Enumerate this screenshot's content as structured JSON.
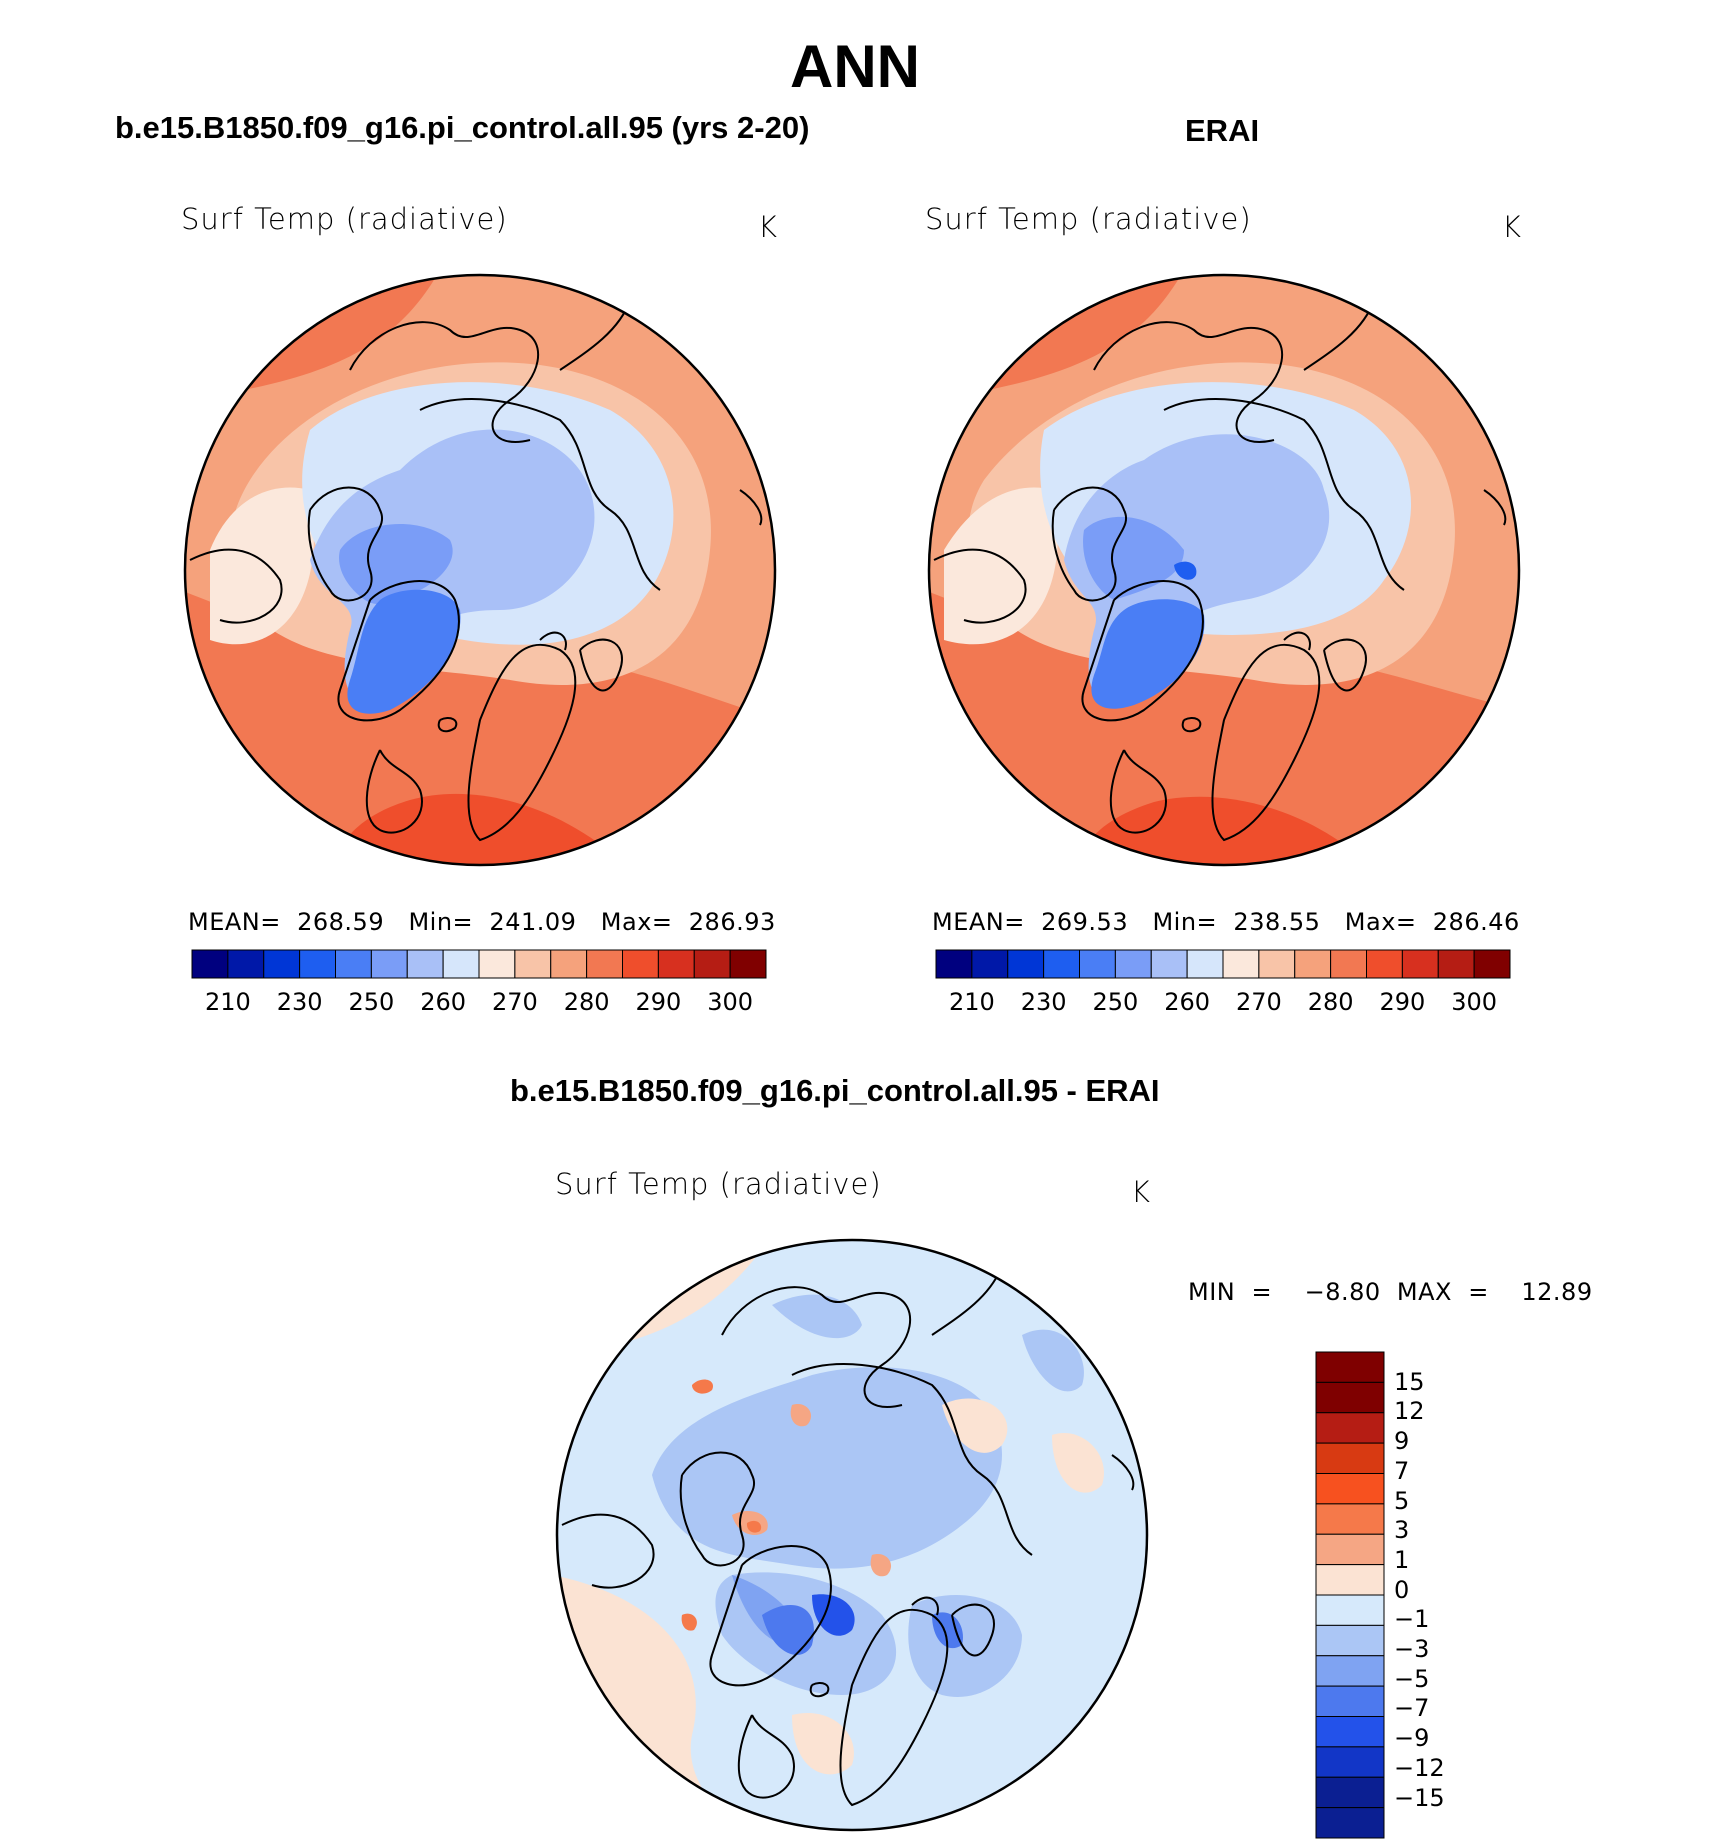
{
  "title": "ANN",
  "panels": [
    {
      "header": "b.e15.B1850.f09_g16.pi_control.all.95 (yrs 2-20)",
      "variable": "Surf Temp (radiative)",
      "units": "K",
      "stats": "MEAN=  268.59   Min=  241.09   Max=  286.93"
    },
    {
      "header": "ERAI",
      "variable": "Surf Temp (radiative)",
      "units": "K",
      "stats": "MEAN=  269.53   Min=  238.55   Max=  286.46"
    },
    {
      "header": "b.e15.B1850.f09_g16.pi_control.all.95 - ERAI",
      "variable": "Surf Temp (radiative)",
      "units": "K",
      "stats": "MIN  =    −8.80  MAX  =    12.89"
    }
  ],
  "abs_colorbar": {
    "colors": [
      "#00007f",
      "#0018a8",
      "#0036d6",
      "#1e5ef0",
      "#4a7ef5",
      "#7a9df7",
      "#a9c0f7",
      "#d6e6fb",
      "#fbe8dc",
      "#f8c4a8",
      "#f5a27c",
      "#f27852",
      "#ef4e2c",
      "#d7301f",
      "#b51d14",
      "#800000"
    ],
    "ticks": [
      "210",
      "230",
      "250",
      "260",
      "270",
      "280",
      "290",
      "300"
    ]
  },
  "diff_colorbar": {
    "colors": [
      "#7f0000",
      "#b51d14",
      "#d83a12",
      "#f7511f",
      "#f5794a",
      "#f5a684",
      "#fbe3d3",
      "#d6e9fb",
      "#abc6f5",
      "#7fa3f2",
      "#4d79ee",
      "#2352ea",
      "#1236c7",
      "#0b1f92"
    ],
    "ticks": [
      "15",
      "12",
      "9",
      "7",
      "5",
      "3",
      "1",
      "0",
      "−1",
      "−3",
      "−5",
      "−7",
      "−9",
      "−12",
      "−15"
    ]
  }
}
